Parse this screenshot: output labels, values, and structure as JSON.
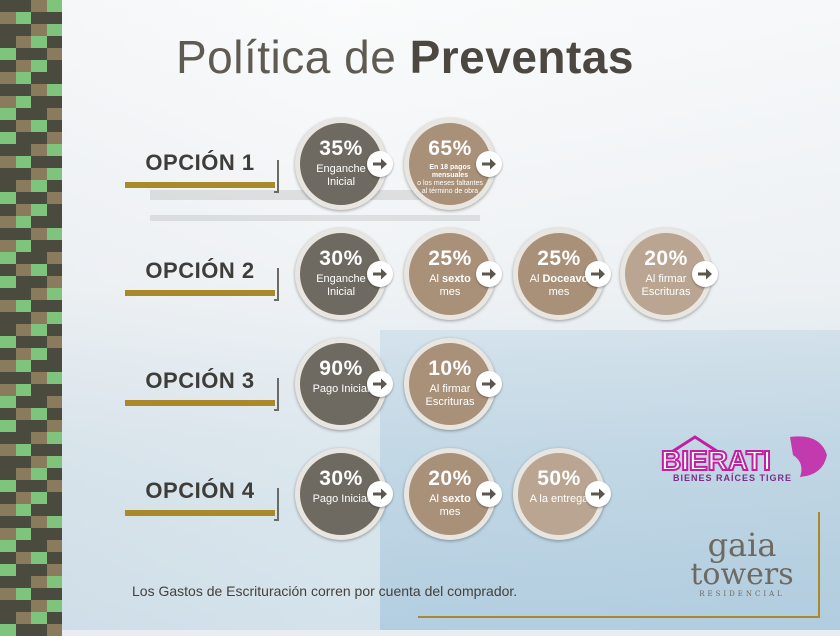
{
  "title": {
    "light": "Política de ",
    "bold": "Preventas"
  },
  "options": [
    {
      "label": "OPCIÓN 1",
      "steps": [
        {
          "pct": "35%",
          "desc": "Enganche Inicial",
          "tone": "dark"
        },
        {
          "pct": "65%",
          "desc_bold": "En 18 pagos mensuales",
          "desc": "o los meses faltantes al término de obra",
          "tone": "mid",
          "small": true
        }
      ]
    },
    {
      "label": "OPCIÓN 2",
      "steps": [
        {
          "pct": "30%",
          "desc": "Enganche Inicial",
          "tone": "dark"
        },
        {
          "pct": "25%",
          "desc_pre": "Al ",
          "desc_bold": "sexto",
          "desc": "mes",
          "tone": "mid"
        },
        {
          "pct": "25%",
          "desc_pre": "Al ",
          "desc_bold": "Doceavo",
          "desc": "mes",
          "tone": "mid"
        },
        {
          "pct": "20%",
          "desc": "Al firmar Escrituras",
          "tone": "light"
        }
      ]
    },
    {
      "label": "OPCIÓN 3",
      "steps": [
        {
          "pct": "90%",
          "desc": "Pago Inicial",
          "tone": "dark"
        },
        {
          "pct": "10%",
          "desc": "Al firmar Escrituras",
          "tone": "mid"
        }
      ]
    },
    {
      "label": "OPCIÓN 4",
      "steps": [
        {
          "pct": "30%",
          "desc": "Pago Inicial",
          "tone": "dark"
        },
        {
          "pct": "20%",
          "desc_pre": "Al ",
          "desc_bold": "sexto",
          "desc": "mes",
          "tone": "mid"
        },
        {
          "pct": "50%",
          "desc": "A la entrega",
          "tone": "light"
        }
      ]
    }
  ],
  "footnote": "Los Gastos de Escrituración corren por cuenta del comprador.",
  "bierati": {
    "name": "BIERATI",
    "tagline": "BIENES RAÍCES TIGRE"
  },
  "gaia": {
    "line1": "gaia",
    "line2": "towers",
    "line3": "RESIDENCIAL"
  },
  "colors": {
    "dark": "#6e6a61",
    "mid": "#a89079",
    "light": "#b9a592",
    "gold": "#a88a2a",
    "magenta": "#c21fa3"
  }
}
